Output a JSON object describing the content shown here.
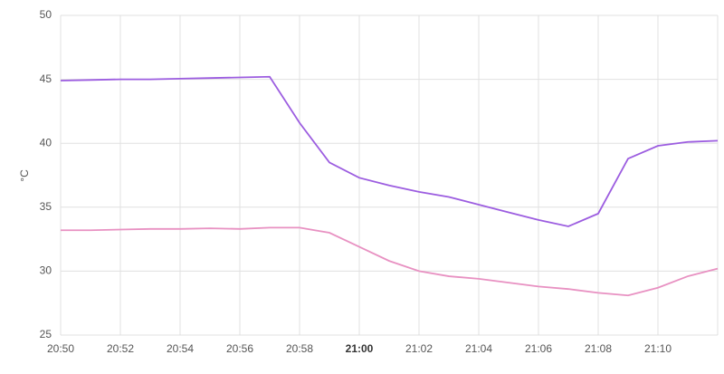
{
  "chart_data": {
    "type": "line",
    "y_label": "°C",
    "x": [
      "20:50",
      "20:51",
      "20:52",
      "20:53",
      "20:54",
      "20:55",
      "20:56",
      "20:57",
      "20:58",
      "20:59",
      "21:00",
      "21:01",
      "21:02",
      "21:03",
      "21:04",
      "21:05",
      "21:06",
      "21:07",
      "21:08",
      "21:09",
      "21:10",
      "21:11",
      "21:12"
    ],
    "series": [
      {
        "color": "#9c5de0",
        "values": [
          44.9,
          44.95,
          45.0,
          45.0,
          45.05,
          45.1,
          45.15,
          45.2,
          41.6,
          38.5,
          37.3,
          36.7,
          36.2,
          35.8,
          35.2,
          34.6,
          34.0,
          33.5,
          34.5,
          38.8,
          39.8,
          40.1,
          40.2
        ]
      },
      {
        "color": "#e891c2",
        "values": [
          33.2,
          33.2,
          33.25,
          33.3,
          33.3,
          33.35,
          33.3,
          33.4,
          33.4,
          33.0,
          31.9,
          30.8,
          30.0,
          29.6,
          29.4,
          29.1,
          28.8,
          28.6,
          28.3,
          28.1,
          28.7,
          29.6,
          30.2
        ]
      }
    ],
    "xlim": [
      "20:50",
      "21:12"
    ],
    "xticks": [
      "20:50",
      "20:52",
      "20:54",
      "20:56",
      "20:58",
      "21:00",
      "21:02",
      "21:04",
      "21:06",
      "21:08",
      "21:10"
    ],
    "ylim": [
      25,
      50
    ],
    "yticks": [
      25,
      30,
      35,
      40,
      45,
      50
    ],
    "grid": true
  }
}
